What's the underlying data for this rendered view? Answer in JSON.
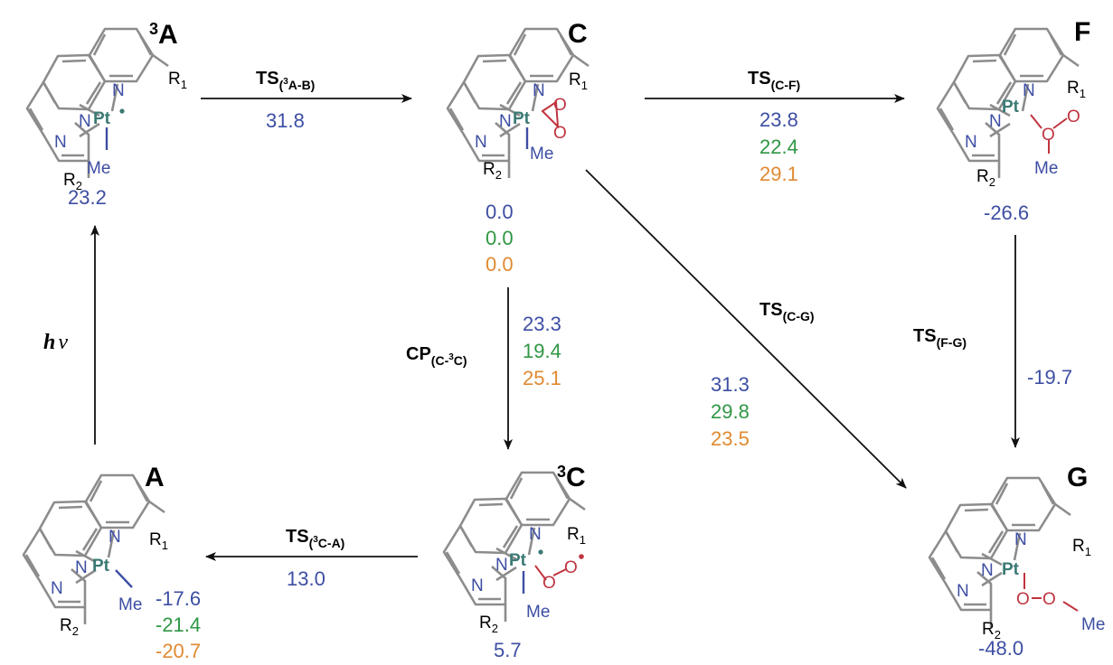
{
  "colors": {
    "blue": "#3d4ea3",
    "green": "#2f9744",
    "orange": "#e08a32",
    "ring": "#8c8c8c",
    "pt": "#3b7a74",
    "oxygen": "#c0343f",
    "arrow": "#111111"
  },
  "atoms": {
    "n": "N",
    "pt": "Pt",
    "me": "Me",
    "o": "O",
    "r1": "R",
    "r1_sub": "1",
    "r2": "R",
    "r2_sub": "2"
  },
  "species": {
    "3A": {
      "sup": "3",
      "label": "A",
      "values": [
        "23.2"
      ]
    },
    "C": {
      "label": "C",
      "values": [
        "0.0",
        "0.0",
        "0.0"
      ]
    },
    "F": {
      "label": "F",
      "values": [
        "-26.6"
      ]
    },
    "3C": {
      "sup": "3",
      "label": "C",
      "values": [
        "5.7"
      ]
    },
    "A": {
      "label": "A",
      "values": [
        "-17.6",
        "-21.4",
        "-20.7"
      ]
    },
    "G": {
      "label": "G",
      "values": [
        "-48.0"
      ]
    }
  },
  "transitions": {
    "3A_B": {
      "main": "TS",
      "sub_open": "(",
      "sub_sup": "3",
      "sub_rest": "A-B)",
      "values": [
        "31.8"
      ]
    },
    "C_F": {
      "main": "TS",
      "sub": "(C-F)",
      "values": [
        "23.8",
        "22.4",
        "29.1"
      ]
    },
    "C_G": {
      "main": "TS",
      "sub": "(C-G)",
      "values": [
        "31.3",
        "29.8",
        "23.5"
      ]
    },
    "F_G": {
      "main": "TS",
      "sub": "(F-G)",
      "values": [
        "-19.7"
      ]
    },
    "C_3C": {
      "main": "CP",
      "sub_open": "(C-",
      "sub_sup": "3",
      "sub_rest": "C)",
      "values": [
        "23.3",
        "19.4",
        "25.1"
      ]
    },
    "3C_A": {
      "main": "TS",
      "sub_open": "(",
      "sub_sup": "3",
      "sub_rest": "C-A)",
      "values": [
        "13.0"
      ]
    },
    "hv": {
      "h": "h",
      "nu": "ν"
    }
  }
}
